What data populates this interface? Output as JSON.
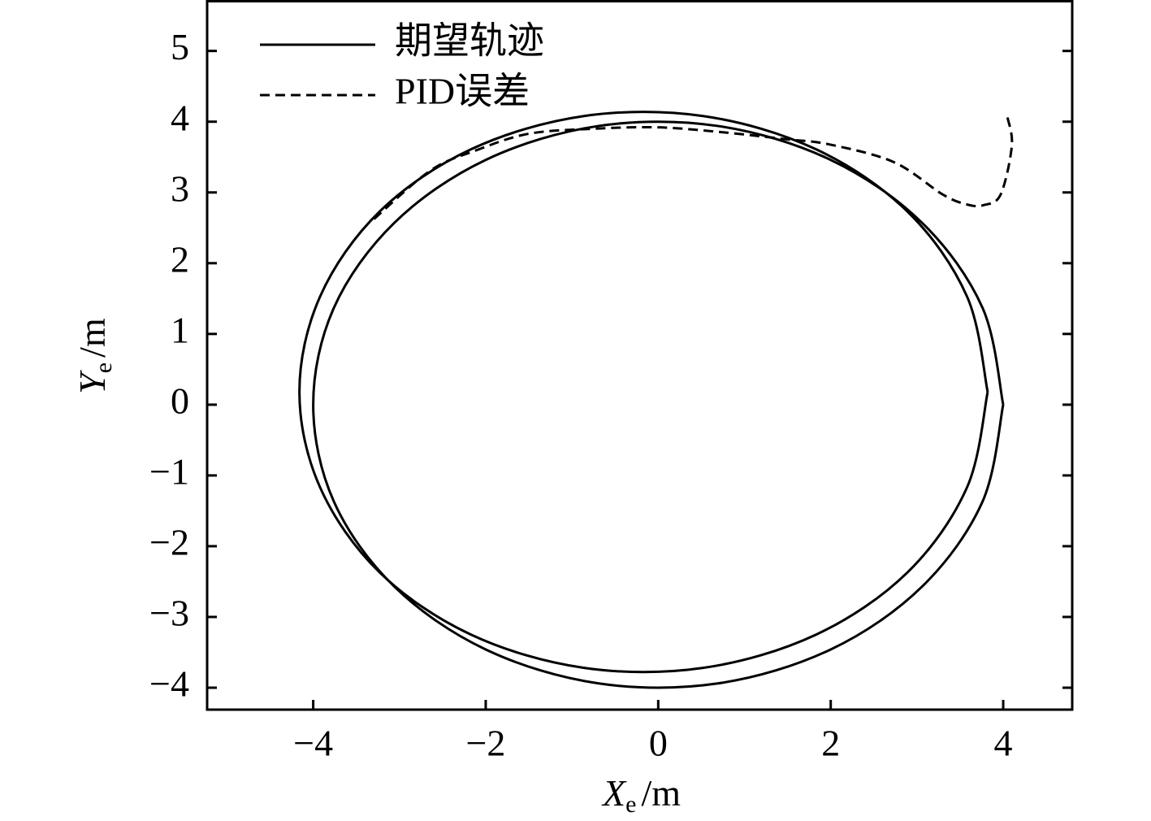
{
  "chart_data": {
    "type": "line",
    "xlabel": {
      "symbol": "X",
      "subscript": "e",
      "unit": "/m"
    },
    "ylabel": {
      "symbol": "Y",
      "subscript": "e",
      "unit": "/m"
    },
    "xlim": [
      -5.23,
      4.8
    ],
    "ylim": [
      -4.31,
      5.72
    ],
    "xticks": [
      {
        "value": -4,
        "label": "−4"
      },
      {
        "value": -2,
        "label": "−2"
      },
      0,
      2,
      4
    ],
    "yticks": [
      {
        "value": -4,
        "label": "−4"
      },
      {
        "value": -3,
        "label": "−3"
      },
      {
        "value": -2,
        "label": "−2"
      },
      {
        "value": -1,
        "label": "−1"
      },
      0,
      1,
      2,
      3,
      4,
      5
    ],
    "legend": "upper left",
    "series": [
      {
        "name": "期望轨迹",
        "color": "#000000",
        "dash": false,
        "x": [
          4,
          3.76,
          3.06,
          2,
          0.69,
          -0.69,
          -2,
          -3.06,
          -3.76,
          -4,
          -3.76,
          -3.06,
          -2,
          -0.69,
          0.69,
          2,
          3.06,
          3.76,
          4,
          null,
          3.82,
          3.58,
          2.89,
          1.83,
          0.52,
          -0.86,
          -2.17,
          -3.23,
          -3.92,
          -4.16,
          -3.92,
          -3.23,
          -2.17,
          -0.86,
          0.52,
          1.83,
          2.89,
          3.58,
          3.82
        ],
        "values": [
          0,
          1.37,
          2.57,
          3.46,
          3.94,
          3.94,
          3.46,
          2.57,
          1.37,
          0,
          -1.37,
          -2.57,
          -3.46,
          -3.94,
          -3.94,
          -3.46,
          -2.57,
          -1.37,
          0,
          null,
          0.18,
          1.53,
          2.73,
          3.61,
          4.08,
          4.08,
          3.61,
          2.73,
          1.53,
          0.18,
          -1.17,
          -2.37,
          -3.25,
          -3.72,
          -3.72,
          -3.25,
          -2.37,
          -1.17,
          0.18
        ]
      },
      {
        "name": "PID误差",
        "color": "#000000",
        "dash": true,
        "x": [
          4.05,
          4.1,
          3.97,
          3.77,
          3.58,
          3.3,
          2.73,
          1.98,
          1.5,
          0.75,
          0,
          -0.75,
          -1.5,
          -2.1,
          -2.64,
          -3.3
        ],
        "values": [
          4.06,
          3.66,
          2.97,
          2.82,
          2.83,
          2.97,
          3.43,
          3.68,
          3.75,
          3.85,
          3.92,
          3.9,
          3.83,
          3.6,
          3.31,
          2.62
        ]
      }
    ]
  }
}
